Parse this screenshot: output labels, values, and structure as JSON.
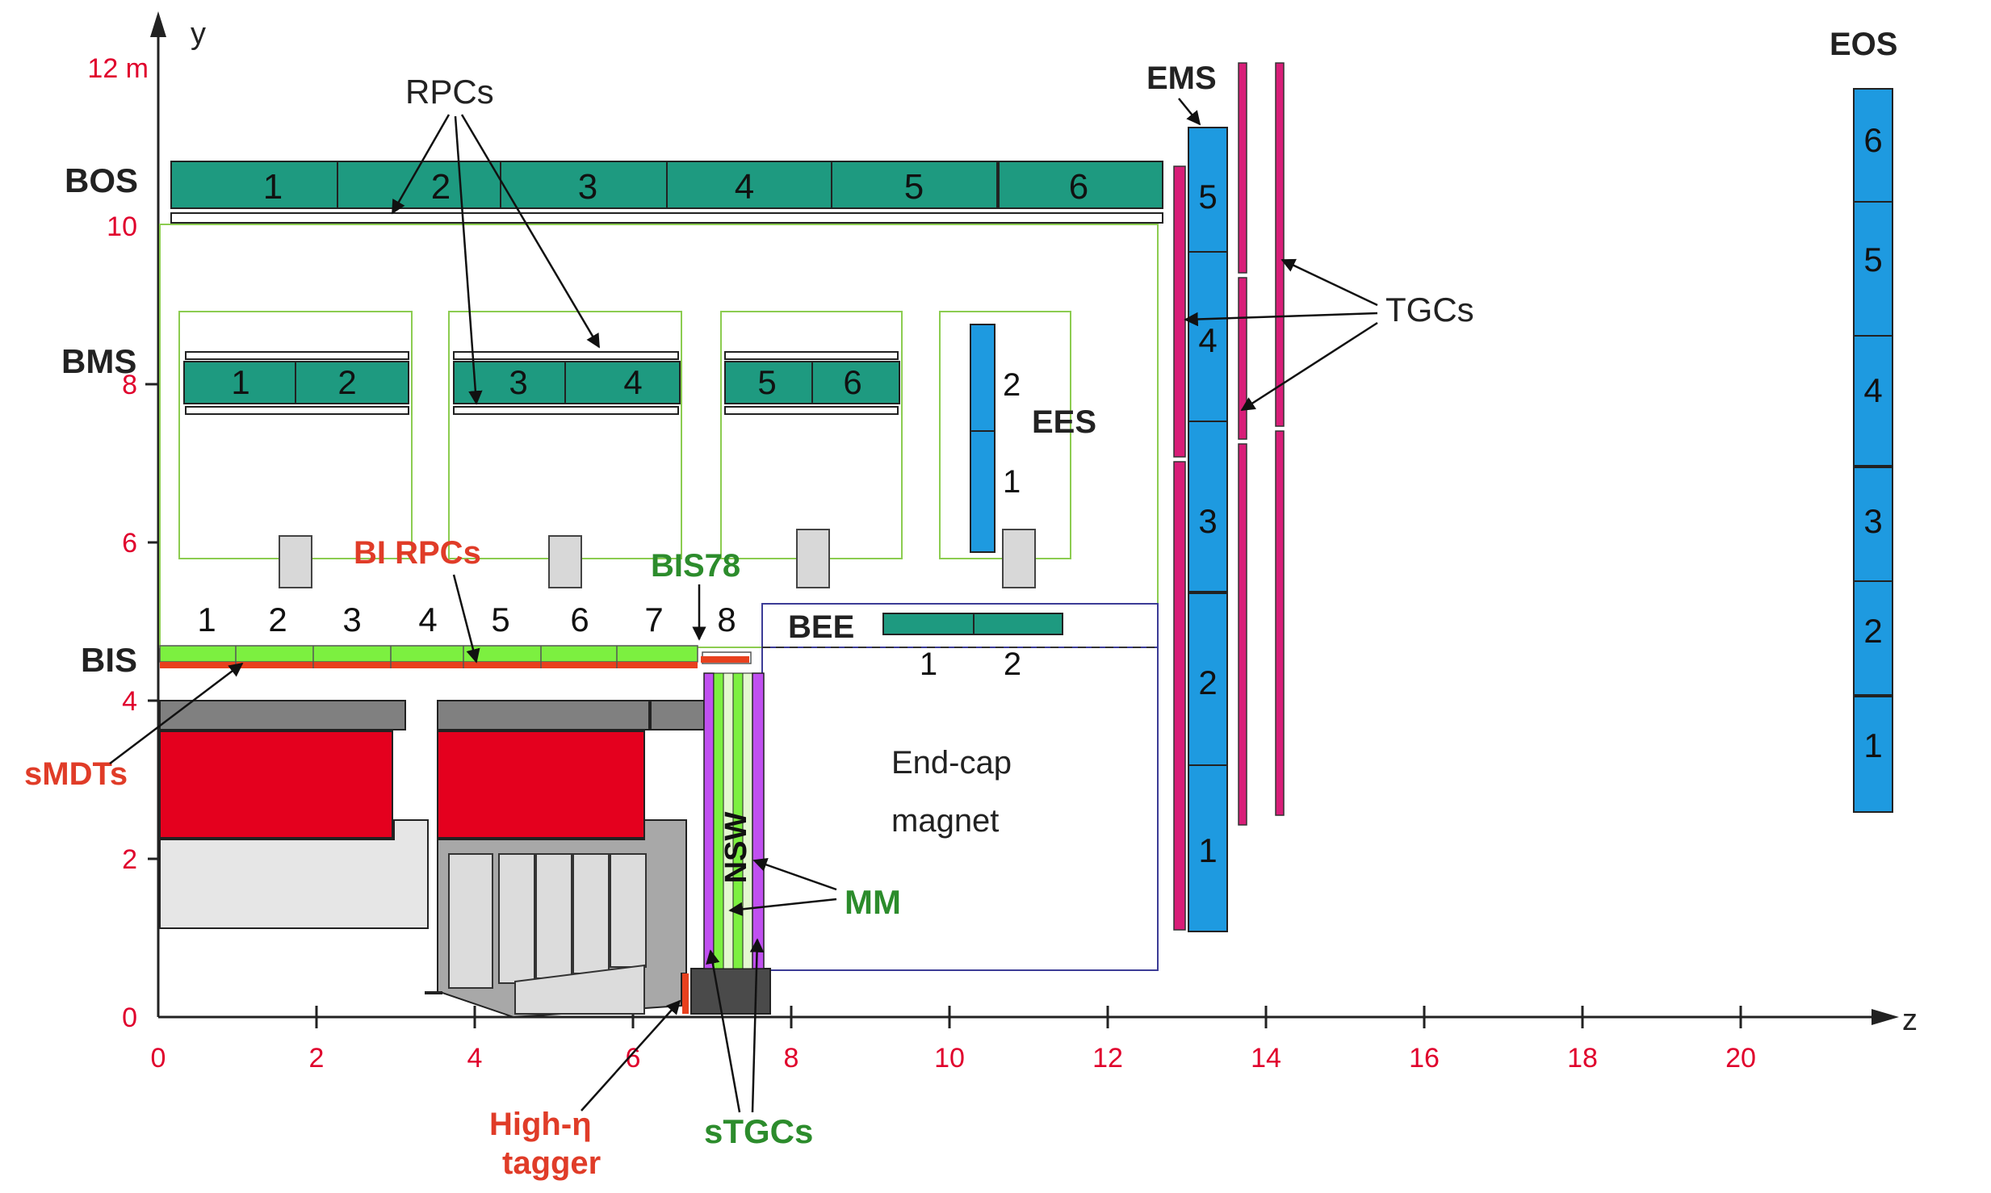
{
  "axes": {
    "y_title": "y",
    "z_title": "z",
    "y_ticks": [
      "0",
      "2",
      "4",
      "6",
      "8",
      "10",
      "12 m"
    ],
    "z_ticks": [
      "0",
      "2",
      "4",
      "6",
      "8",
      "10",
      "12",
      "14",
      "16",
      "18",
      "20"
    ]
  },
  "stations": {
    "bos": "BOS",
    "bms": "BMS",
    "bis": "BIS",
    "ems": "EMS",
    "eos": "EOS",
    "ees": "EES",
    "bee": "BEE"
  },
  "annotations": {
    "rpcs": "RPCs",
    "tgcs": "TGCs",
    "bi_rpcs": "BI RPCs",
    "bis78": "BIS78",
    "smdts": "sMDTs",
    "nsw": "NSW",
    "mm": "MM",
    "stgcs": "sTGCs",
    "high_eta_1": "High-η",
    "high_eta_2": "tagger",
    "endcap_1": "End-cap",
    "endcap_2": "magnet"
  },
  "sector_numbers": {
    "bos": [
      "1",
      "2",
      "3",
      "4",
      "5",
      "6"
    ],
    "bms": [
      "1",
      "2",
      "3",
      "4",
      "5",
      "6"
    ],
    "bis": [
      "1",
      "2",
      "3",
      "4",
      "5",
      "6",
      "7",
      "8"
    ],
    "ees": [
      "2",
      "1"
    ],
    "bee": [
      "1",
      "2"
    ],
    "ems": [
      "5",
      "4",
      "3",
      "2",
      "1"
    ],
    "eos": [
      "6",
      "5",
      "4",
      "3",
      "2",
      "1"
    ]
  },
  "colors": {
    "mdt_teal": "#1e9a80",
    "endcap_blue": "#1e9ae0",
    "tgc_magenta": "#d81e78",
    "bis_green": "#7cf040",
    "smdt_red": "#e8401e",
    "calorimeter_red": "#e4001e",
    "outline_green": "#8ccc50",
    "bee_navy": "#3c3c96",
    "nsw_purple": "#c050f0",
    "label_red": "#e03c28",
    "label_green": "#2c8c2c",
    "axis_red": "#e0002c"
  }
}
